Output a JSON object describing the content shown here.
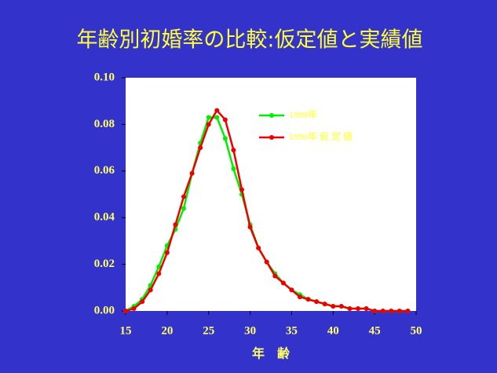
{
  "chart_data": {
    "type": "line",
    "title": "年齢別初婚率の比較:仮定値と実績値",
    "x_label": "年　齢",
    "x": [
      15,
      16,
      17,
      18,
      19,
      20,
      21,
      22,
      23,
      24,
      25,
      26,
      27,
      28,
      29,
      30,
      31,
      32,
      33,
      34,
      35,
      36,
      37,
      38,
      39,
      40,
      41,
      42,
      43,
      44,
      45,
      46,
      47,
      48,
      49
    ],
    "series": [
      {
        "name": "1999年",
        "color": "#00ee00",
        "values": [
          0.0,
          0.002,
          0.005,
          0.011,
          0.019,
          0.028,
          0.035,
          0.044,
          0.059,
          0.072,
          0.083,
          0.083,
          0.074,
          0.061,
          0.05,
          0.037,
          0.027,
          0.021,
          0.016,
          0.012,
          0.009,
          0.007,
          0.005,
          0.004,
          0.003,
          0.002,
          0.002,
          0.001,
          0.001,
          0.001,
          0.0,
          0.0,
          0.0,
          0.0,
          0.0
        ]
      },
      {
        "name": "1999年 仮 定 値",
        "color": "#ee0000",
        "values": [
          0.0,
          0.001,
          0.004,
          0.009,
          0.016,
          0.025,
          0.037,
          0.049,
          0.059,
          0.07,
          0.08,
          0.086,
          0.082,
          0.069,
          0.052,
          0.036,
          0.027,
          0.021,
          0.015,
          0.012,
          0.009,
          0.006,
          0.005,
          0.004,
          0.003,
          0.002,
          0.002,
          0.001,
          0.001,
          0.001,
          0.0,
          0.0,
          0.0,
          0.0,
          0.0
        ]
      }
    ],
    "xlim": [
      15,
      50
    ],
    "xticks": [
      15,
      20,
      25,
      30,
      35,
      40,
      45,
      50
    ],
    "ylim": [
      0,
      0.1
    ],
    "yticks": [
      {
        "value": 0,
        "label": "0.00"
      },
      {
        "value": 0.02,
        "label": "0.02"
      },
      {
        "value": 0.04,
        "label": "0.04"
      },
      {
        "value": 0.06,
        "label": "0.06"
      },
      {
        "value": 0.08,
        "label": "0.08"
      },
      {
        "value": 0.1,
        "label": "0.10"
      }
    ],
    "grid": false
  }
}
